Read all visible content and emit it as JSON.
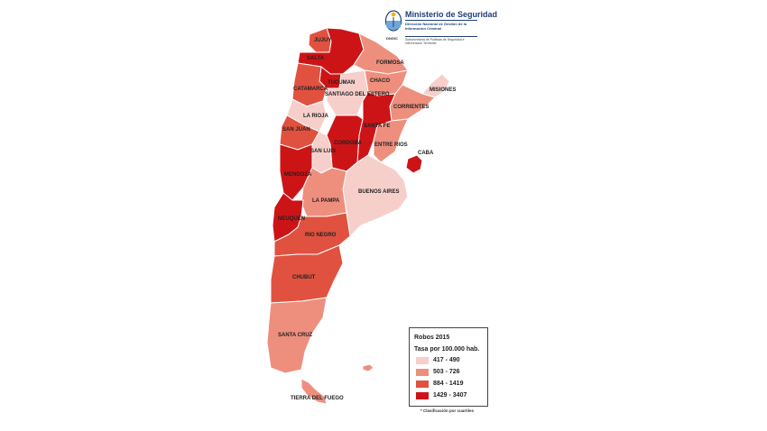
{
  "header": {
    "title": "Ministerio de Seguridad",
    "line1": "Dirección Nacional de Gestión de la Información Criminal",
    "line2": "Subsecretaría de Políticas de Seguridad e Intervención Territorial",
    "seal_text": "DNGIC"
  },
  "legend": {
    "title": "Robos 2015",
    "subtitle": "Tasa por 100.000 hab.",
    "items": [
      {
        "label": "417 - 490",
        "color": "#f6cfcb"
      },
      {
        "label": "503 - 726",
        "color": "#ee8f7e"
      },
      {
        "label": "884 - 1419",
        "color": "#e0523f"
      },
      {
        "label": "1429 - 3407",
        "color": "#cc1417"
      }
    ]
  },
  "footnote": "* Clasificación por cuartiles",
  "provinces": [
    {
      "name": "JUJUY",
      "color": "#e0523f"
    },
    {
      "name": "SALTA",
      "color": "#cc1417"
    },
    {
      "name": "FORMOSA",
      "color": "#ee8f7e"
    },
    {
      "name": "TUCUMAN",
      "color": "#cc1417"
    },
    {
      "name": "CHACO",
      "color": "#ee8f7e"
    },
    {
      "name": "MISIONES",
      "color": "#f6cfcb"
    },
    {
      "name": "CATAMARCA",
      "color": "#e0523f"
    },
    {
      "name": "SANTIAGO DEL ESTERO",
      "color": "#f6cfcb"
    },
    {
      "name": "CORRIENTES",
      "color": "#ee8f7e"
    },
    {
      "name": "LA RIOJA",
      "color": "#f6cfcb"
    },
    {
      "name": "SANTA FE",
      "color": "#cc1417"
    },
    {
      "name": "SAN JUAN",
      "color": "#e0523f"
    },
    {
      "name": "CORDOBA",
      "color": "#cc1417"
    },
    {
      "name": "ENTRE RIOS",
      "color": "#ee8f7e"
    },
    {
      "name": "CABA",
      "color": "#cc1417"
    },
    {
      "name": "SAN LUIS",
      "color": "#f6cfcb"
    },
    {
      "name": "MENDOZA",
      "color": "#cc1417"
    },
    {
      "name": "BUENOS AIRES",
      "color": "#f6cfcb"
    },
    {
      "name": "LA PAMPA",
      "color": "#ee8f7e"
    },
    {
      "name": "NEUQUEN",
      "color": "#cc1417"
    },
    {
      "name": "RIO NEGRO",
      "color": "#e0523f"
    },
    {
      "name": "CHUBUT",
      "color": "#e0523f"
    },
    {
      "name": "SANTA CRUZ",
      "color": "#ee8f7e"
    },
    {
      "name": "TIERRA DEL FUEGO",
      "color": "#ee8f7e"
    }
  ]
}
